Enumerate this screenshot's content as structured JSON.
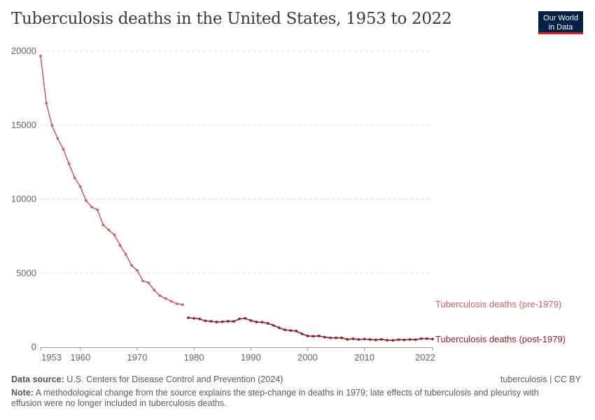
{
  "title": "Tuberculosis deaths in the United States, 1953 to 2022",
  "logo": {
    "line1": "Our World",
    "line2": "in Data",
    "colors": {
      "bg": "#002147",
      "accent": "#ce261e"
    }
  },
  "footer": {
    "source_label": "Data source:",
    "source": "U.S. Centers for Disease Control and Prevention (2024)",
    "credit": "tuberculosis | CC BY",
    "note_label": "Note:",
    "note": "A methodological change from the source explains the step-change in deaths in 1979; late effects of tuberculosis and pleurisy with effusion were no longer included in tuberculosis deaths."
  },
  "chart_data": {
    "type": "line",
    "title": "Tuberculosis deaths in the United States, 1953 to 2022",
    "ylim": [
      0,
      20000
    ],
    "xlim": [
      1953,
      2022
    ],
    "yticks": [
      "0",
      "5000",
      "10000",
      "15000",
      "20000"
    ],
    "xticks": [
      "1953",
      "1960",
      "1970",
      "1980",
      "1990",
      "2000",
      "2010",
      "2022"
    ],
    "grid": "horizontal dashed",
    "legend": "right-end labels",
    "series": [
      {
        "name": "Tuberculosis deaths (pre-1979)",
        "color": "#c8636e",
        "x": [
          1953,
          1954,
          1955,
          1956,
          1957,
          1958,
          1959,
          1960,
          1961,
          1962,
          1963,
          1964,
          1965,
          1966,
          1967,
          1968,
          1969,
          1970,
          1971,
          1972,
          1973,
          1974,
          1975,
          1976,
          1977,
          1978
        ],
        "values": [
          19670,
          16490,
          14990,
          14100,
          13370,
          12390,
          11440,
          10840,
          9900,
          9470,
          9280,
          8270,
          7910,
          7590,
          6870,
          6270,
          5530,
          5190,
          4480,
          4350,
          3850,
          3480,
          3290,
          3100,
          2930,
          2880
        ]
      },
      {
        "name": "Tuberculosis deaths (post-1979)",
        "color": "#8c2232",
        "x": [
          1979,
          1980,
          1981,
          1982,
          1983,
          1984,
          1985,
          1986,
          1987,
          1988,
          1989,
          1990,
          1991,
          1992,
          1993,
          1994,
          1995,
          1996,
          1997,
          1998,
          1999,
          2000,
          2001,
          2002,
          2003,
          2004,
          2005,
          2006,
          2007,
          2008,
          2009,
          2010,
          2011,
          2012,
          2013,
          2014,
          2015,
          2016,
          2017,
          2018,
          2019,
          2020,
          2021,
          2022
        ],
        "values": [
          1990,
          1950,
          1910,
          1780,
          1750,
          1700,
          1720,
          1750,
          1740,
          1910,
          1950,
          1800,
          1700,
          1690,
          1610,
          1470,
          1310,
          1170,
          1130,
          1090,
          900,
          760,
          740,
          760,
          680,
          630,
          630,
          630,
          530,
          570,
          520,
          550,
          520,
          490,
          530,
          470,
          460,
          510,
          490,
          520,
          510,
          580,
          580,
          550
        ]
      }
    ]
  }
}
